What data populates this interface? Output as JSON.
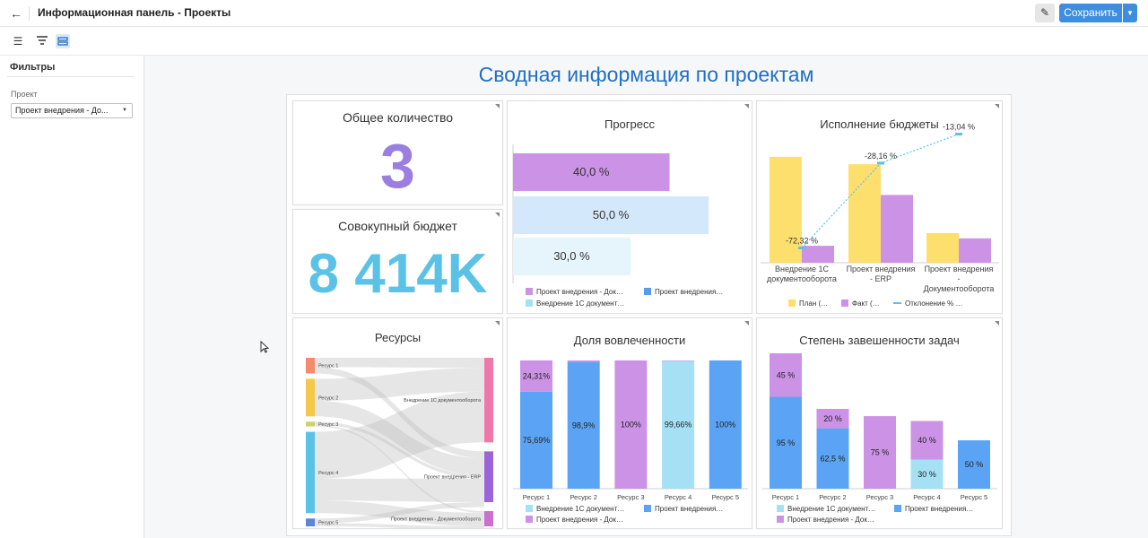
{
  "header": {
    "back_icon": "arrow-left-icon",
    "title": "Информационная панель - Проекты",
    "edit_icon": "pencil-icon",
    "save_label": "Сохранить",
    "save_menu_icon": "caret-down-icon",
    "save_color": "#3d8ee0"
  },
  "toolbar": {
    "icons": [
      "menu-icon",
      "filter-icon",
      "layout-icon"
    ]
  },
  "sidebar": {
    "title": "Фильтры",
    "filter_label": "Проект",
    "filter_value": "Проект внедрения - До..."
  },
  "dashboard": {
    "title": "Сводная информация по проектам",
    "title_color": "#1f6fc4"
  },
  "tiles": {
    "total_count": {
      "title": "Общее количество",
      "value": "3",
      "color": "#9b7fe0"
    },
    "total_budget": {
      "title": "Совокупный бюджет",
      "value": "8 414K",
      "color": "#5bc2e7"
    },
    "progress": {
      "title": "Прогресс"
    },
    "budget": {
      "title": "Исполнение бюджеты"
    },
    "resources": {
      "title": "Ресурсы"
    },
    "involvement": {
      "title": "Доля вовлеченности"
    },
    "completion": {
      "title": "Степень завешенности задач"
    }
  },
  "chart_data": [
    {
      "id": "progress",
      "type": "bar",
      "orientation": "horizontal",
      "categories": [
        "Проект внедрения - Док…",
        "Проект внедрения…",
        "Внедрение 1С документ…"
      ],
      "values": [
        40.0,
        50.0,
        30.0
      ],
      "labels": [
        "40,0 %",
        "50,0 %",
        "30,0 %"
      ],
      "colors": [
        "#cc92e6",
        "#d4e8fb",
        "#e6f4fb"
      ],
      "legend": [
        {
          "name": "Проект внедрения - Док…",
          "color": "#cc92e6"
        },
        {
          "name": "Проект внедрения…",
          "color": "#5b9bea"
        },
        {
          "name": "Внедрение 1С документ…",
          "color": "#a6e0f5"
        }
      ],
      "xlim": [
        0,
        55
      ]
    },
    {
      "id": "budget",
      "type": "bar",
      "categories": [
        "Внедрение 1С документооборота",
        "Проект внедрения - ERP",
        "Проект внедрения - Документооборота"
      ],
      "category_lines": [
        [
          "Внедрение 1С",
          "документооборота"
        ],
        [
          "Проект внедрения",
          "- ERP"
        ],
        [
          "Проект внедрения",
          "-",
          "Документооборота"
        ]
      ],
      "series": [
        {
          "name": "План (…",
          "values": [
            100,
            93,
            28
          ],
          "color": "#fddf6e"
        },
        {
          "name": "Факт (…",
          "values": [
            16,
            64,
            23
          ],
          "color": "#cc92e6"
        }
      ],
      "line_series": {
        "name": "Отклонение % …",
        "values": [
          -72.32,
          -28.16,
          -13.04
        ],
        "labels": [
          "-72,32 %",
          "-28,16 %",
          "-13,04 %"
        ],
        "color": "#5bc2e7",
        "ylim": [
          -80,
          -10
        ]
      },
      "ylim": [
        0,
        105
      ]
    },
    {
      "id": "resources",
      "type": "sankey",
      "sources": [
        {
          "name": "Ресурс 1",
          "value": 1,
          "color": "#f68b6b"
        },
        {
          "name": "Ресурс 2",
          "value": 2.4,
          "color": "#f5c74a"
        },
        {
          "name": "Ресурс 3",
          "value": 0.3,
          "color": "#cfd26a"
        },
        {
          "name": "Ресурс 4",
          "value": 5.2,
          "color": "#5bc2e7"
        },
        {
          "name": "Ресурс 5",
          "value": 0.5,
          "color": "#5b86d6"
        }
      ],
      "targets": [
        {
          "name": "Внедрение 1С документооборота",
          "value": 5,
          "color": "#f078a8"
        },
        {
          "name": "Проект внедрения - ERP",
          "value": 3,
          "color": "#9c64d6"
        },
        {
          "name": "Проект внедрения - Документооборота",
          "value": 0.9,
          "color": "#cc70d0"
        }
      ],
      "links": [
        [
          0,
          0,
          0.6
        ],
        [
          0,
          1,
          0.4
        ],
        [
          1,
          0,
          1.4
        ],
        [
          1,
          1,
          1.0
        ],
        [
          2,
          1,
          0.2
        ],
        [
          2,
          2,
          0.1
        ],
        [
          3,
          0,
          3.0
        ],
        [
          3,
          1,
          1.4
        ],
        [
          3,
          2,
          0.8
        ],
        [
          4,
          1,
          0.3
        ],
        [
          4,
          2,
          0.2
        ]
      ]
    },
    {
      "id": "involvement",
      "type": "bar",
      "stacked": true,
      "categories": [
        "Ресурс 1",
        "Ресурс 2",
        "Ресурс 3",
        "Ресурс 4",
        "Ресурс 5"
      ],
      "series": [
        {
          "name": "Внедрение 1С документ…",
          "values": [
            0,
            0,
            0,
            99.66,
            0
          ],
          "labels": [
            "",
            "",
            "",
            "99,66%",
            ""
          ],
          "color": "#a6e0f5"
        },
        {
          "name": "Проект внедрения…",
          "values": [
            75.69,
            98.9,
            0,
            0,
            100
          ],
          "labels": [
            "75,69%",
            "98,9%",
            "",
            "",
            "100%"
          ],
          "color": "#5ba4f5"
        },
        {
          "name": "Проект внедрения - Док…",
          "values": [
            24.31,
            1.1,
            100,
            0.34,
            0
          ],
          "labels": [
            "24,31%",
            "",
            "100%",
            "",
            ""
          ],
          "color": "#cc92e6"
        }
      ],
      "ylim": [
        0,
        100
      ]
    },
    {
      "id": "completion",
      "type": "bar",
      "stacked": true,
      "categories": [
        "Ресурс 1",
        "Ресурс 2",
        "Ресурс 3",
        "Ресурс 4",
        "Ресурс 5"
      ],
      "series": [
        {
          "name": "Внедрение 1С документ…",
          "values": [
            0,
            0,
            0,
            30,
            0
          ],
          "labels": [
            "",
            "",
            "",
            "30 %",
            ""
          ],
          "color": "#a6e0f5"
        },
        {
          "name": "Проект внедрения…",
          "values": [
            95,
            62.5,
            0,
            0,
            50
          ],
          "labels": [
            "95 %",
            "62,5 %",
            "",
            "",
            "50 %"
          ],
          "color": "#5ba4f5"
        },
        {
          "name": "Проект внедрения - Док…",
          "values": [
            45,
            20,
            75,
            40,
            0
          ],
          "labels": [
            "45 %",
            "20 %",
            "75 %",
            "40 %",
            ""
          ],
          "color": "#cc92e6"
        }
      ],
      "ylim": [
        0,
        140
      ]
    }
  ]
}
